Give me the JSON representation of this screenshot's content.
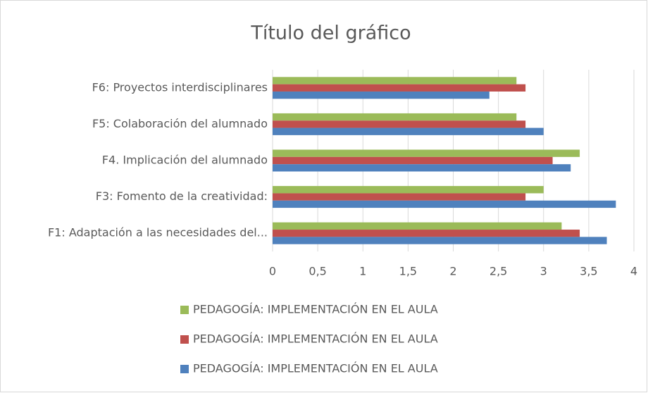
{
  "chart_data": {
    "type": "barh",
    "title": "Título del gráfico",
    "categories": [
      "F1: Adaptación a las necesidades del...",
      "F3: Fomento de la creatividad:",
      "F4. Implicación del alumnado",
      "F5: Colaboración del alumnado",
      "F6: Proyectos interdisciplinares"
    ],
    "series": [
      {
        "name": "PEDAGOGÍA: IMPLEMENTACIÓN EN EL AULA",
        "color": "#9bbb59",
        "values": [
          3.2,
          3.0,
          3.4,
          2.7,
          2.7
        ]
      },
      {
        "name": "PEDAGOGÍA: IMPLEMENTACIÓN EN EL AULA",
        "color": "#c0504d",
        "values": [
          3.4,
          2.8,
          3.1,
          2.8,
          2.8
        ]
      },
      {
        "name": "PEDAGOGÍA: IMPLEMENTACIÓN EN EL AULA",
        "color": "#4f81bd",
        "values": [
          3.7,
          3.8,
          3.3,
          3.0,
          2.4
        ]
      }
    ],
    "xlim": [
      0,
      4
    ],
    "xticks": [
      0,
      {
        "value": 0.5,
        "label": "0,5"
      },
      1,
      {
        "value": 1.5,
        "label": "1,5"
      },
      2,
      {
        "value": 2.5,
        "label": "2,5"
      },
      3,
      {
        "value": 3.5,
        "label": "3,5"
      },
      4
    ],
    "grid": true,
    "legend": "bottom"
  }
}
